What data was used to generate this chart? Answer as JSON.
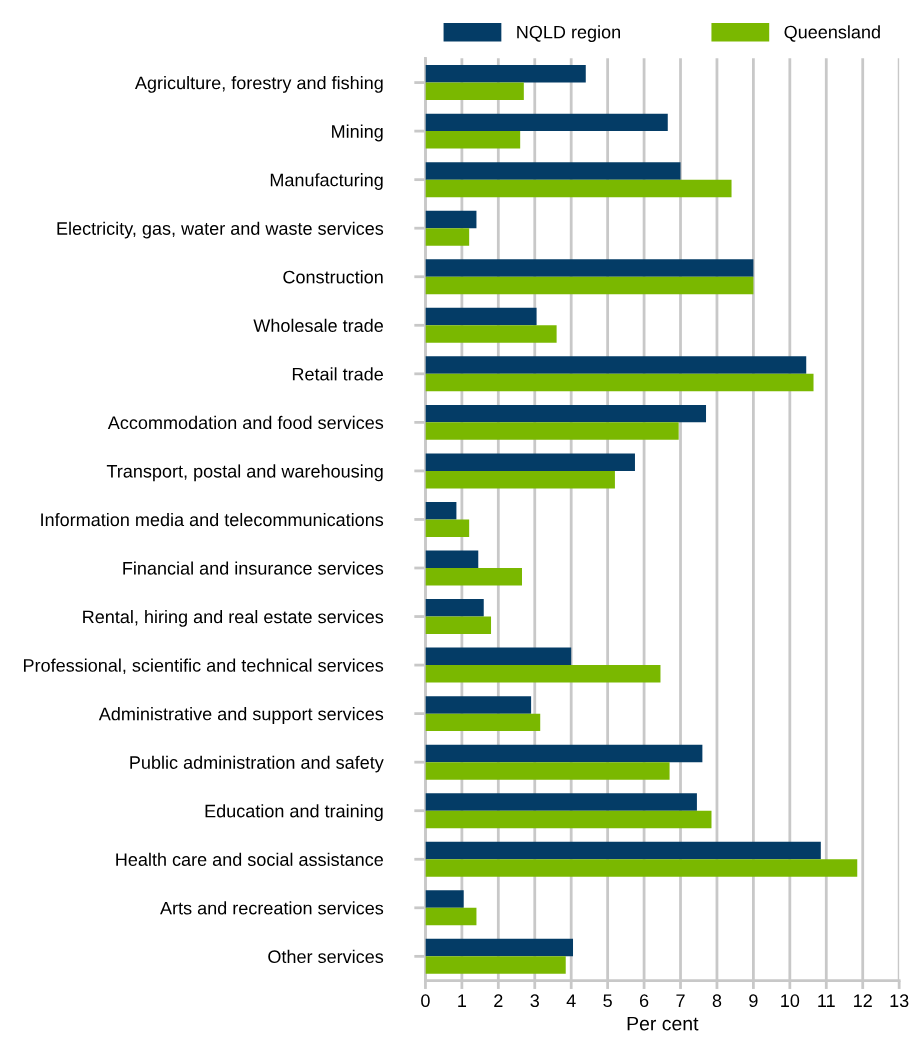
{
  "chart_data": {
    "type": "bar",
    "orientation": "horizontal",
    "xlabel": "Per cent",
    "categories": [
      "Agriculture, forestry and fishing",
      "Mining",
      "Manufacturing",
      "Electricity, gas, water and waste services",
      "Construction",
      "Wholesale trade",
      "Retail trade",
      "Accommodation and food services",
      "Transport, postal and warehousing",
      "Information media and telecommunications",
      "Financial and insurance services",
      "Rental, hiring and real estate services",
      "Professional, scientific and technical services",
      "Administrative and support services",
      "Public administration and safety",
      "Education and training",
      "Health care and social assistance",
      "Arts and recreation services",
      "Other services"
    ],
    "series": [
      {
        "name": "NQLD region",
        "color": "#043c66",
        "values": [
          4.4,
          6.65,
          7.0,
          1.4,
          9.0,
          3.05,
          10.45,
          7.7,
          5.75,
          0.85,
          1.45,
          1.6,
          4.0,
          2.9,
          7.6,
          7.45,
          10.85,
          1.05,
          4.05
        ]
      },
      {
        "name": "Queensland",
        "color": "#7ab800",
        "values": [
          2.7,
          2.6,
          8.4,
          1.2,
          9.0,
          3.6,
          10.65,
          6.95,
          5.2,
          1.2,
          2.65,
          1.8,
          6.45,
          3.15,
          6.7,
          7.85,
          11.85,
          1.4,
          3.85
        ]
      }
    ],
    "xlim": [
      0,
      13
    ],
    "xticks": [
      0,
      1,
      2,
      3,
      4,
      5,
      6,
      7,
      8,
      9,
      10,
      11,
      12,
      13
    ],
    "grid": "x",
    "legend": "top"
  }
}
